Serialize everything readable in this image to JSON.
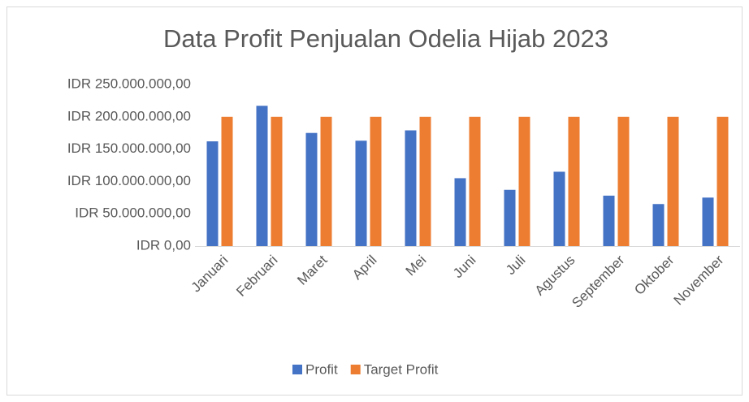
{
  "chart_data": {
    "type": "bar",
    "title": "Data Profit Penjualan Odelia Hijab 2023",
    "categories": [
      "Januari",
      "Februari",
      "Maret",
      "April",
      "Mei",
      "Juni",
      "Juli",
      "Agustus",
      "September",
      "Oktober",
      "November"
    ],
    "series": [
      {
        "name": "Profit",
        "color": "#4472c4",
        "values": [
          162000000,
          217000000,
          175000000,
          163000000,
          179000000,
          105000000,
          87000000,
          115000000,
          78000000,
          65000000,
          75000000
        ]
      },
      {
        "name": "Target Profit",
        "color": "#ed7d31",
        "values": [
          200000000,
          200000000,
          200000000,
          200000000,
          200000000,
          200000000,
          200000000,
          200000000,
          200000000,
          200000000,
          200000000
        ]
      }
    ],
    "ylim": [
      0,
      250000000
    ],
    "yticks": [
      {
        "value": 0,
        "label": "IDR 0,00"
      },
      {
        "value": 50000000,
        "label": "IDR 50.000.000,00"
      },
      {
        "value": 100000000,
        "label": "IDR 100.000.000,00"
      },
      {
        "value": 150000000,
        "label": "IDR 150.000.000,00"
      },
      {
        "value": 200000000,
        "label": "IDR 200.000.000,00"
      },
      {
        "value": 250000000,
        "label": "IDR 250.000.000,00"
      }
    ],
    "grid": false,
    "legend": "bottom"
  }
}
